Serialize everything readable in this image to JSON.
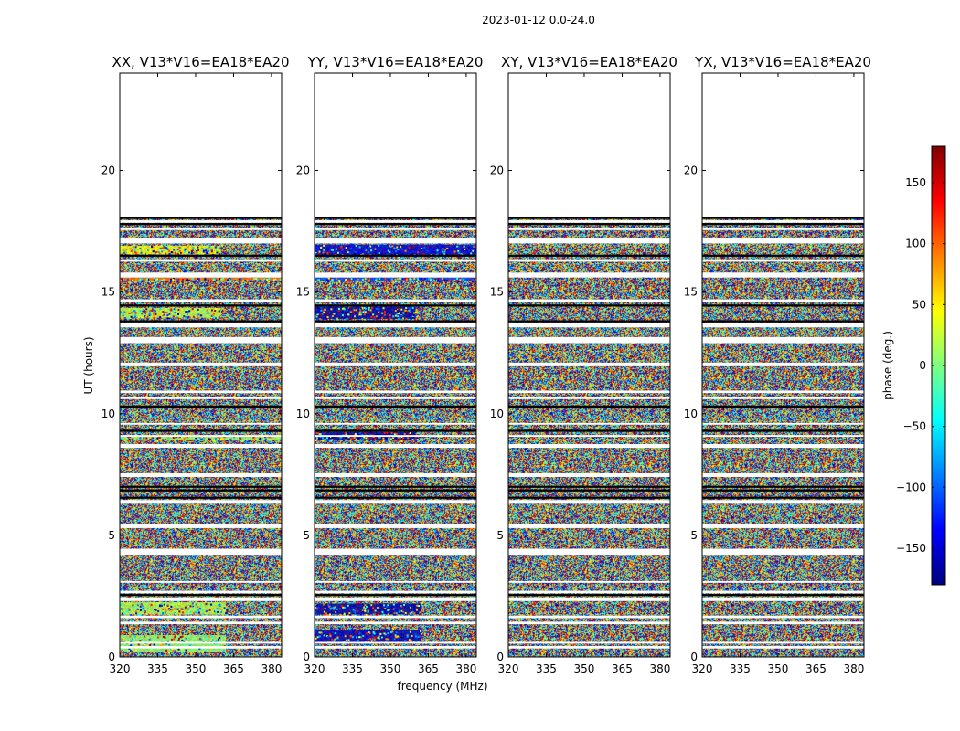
{
  "chart_data": {
    "type": "heatmap",
    "suptitle": "2023-01-12 0.0-24.0",
    "xlabel": "frequency (MHz)",
    "ylabel": "UT (hours)",
    "xlim": [
      320,
      384
    ],
    "ylim": [
      0,
      24
    ],
    "xticks": [
      320,
      335,
      350,
      365,
      380
    ],
    "yticks": [
      0,
      5,
      10,
      15,
      20
    ],
    "colorbar": {
      "label": "phase (deg.)",
      "range": [
        -180,
        180
      ],
      "ticks": [
        150,
        100,
        50,
        0,
        -50,
        -100,
        -150
      ],
      "tick_labels": [
        "150",
        "100",
        "50",
        "0",
        "−50",
        "−100",
        "−150"
      ],
      "colormap": "jet"
    },
    "data_span_hours": [
      0.0,
      18.1
    ],
    "gap_bands_hours": [
      [
        0.35,
        0.45
      ],
      [
        0.55,
        0.62
      ],
      [
        1.35,
        1.45
      ],
      [
        1.6,
        1.7
      ],
      [
        2.3,
        2.45
      ],
      [
        2.62,
        2.72
      ],
      [
        3.05,
        3.12
      ],
      [
        4.2,
        4.45
      ],
      [
        5.3,
        5.45
      ],
      [
        6.3,
        6.45
      ],
      [
        7.4,
        7.55
      ],
      [
        8.6,
        8.75
      ],
      [
        9.05,
        9.12
      ],
      [
        9.55,
        9.62
      ],
      [
        10.6,
        10.7
      ],
      [
        10.85,
        10.95
      ],
      [
        11.95,
        12.1
      ],
      [
        12.9,
        13.15
      ],
      [
        13.55,
        13.72
      ],
      [
        14.6,
        14.7
      ],
      [
        15.6,
        15.8
      ],
      [
        16.25,
        16.35
      ],
      [
        17.0,
        17.2
      ],
      [
        17.55,
        17.65
      ],
      [
        17.85,
        17.95
      ]
    ],
    "flag_lines_hours": [
      2.55,
      6.55,
      6.85,
      7.0,
      9.3,
      10.3,
      13.8,
      14.45,
      16.5,
      17.8,
      18.05
    ],
    "panels": [
      {
        "title": "XX, V13*V16=EA18*EA20",
        "dominant_phase_bands": [
          {
            "t0": 0.2,
            "t1": 0.9,
            "f0": 320,
            "f1": 362,
            "phase": 5
          },
          {
            "t0": 1.75,
            "t1": 2.25,
            "f0": 320,
            "f1": 362,
            "phase": 20
          },
          {
            "t0": 8.9,
            "t1": 9.1,
            "f0": 320,
            "f1": 384,
            "phase": 10
          },
          {
            "t0": 13.95,
            "t1": 14.35,
            "f0": 320,
            "f1": 360,
            "phase": 25
          },
          {
            "t0": 15.45,
            "t1": 15.6,
            "f0": 320,
            "f1": 384,
            "phase": 95
          },
          {
            "t0": 16.55,
            "t1": 16.9,
            "f0": 320,
            "f1": 360,
            "phase": 40
          }
        ]
      },
      {
        "title": "YY, V13*V16=EA18*EA20",
        "dominant_phase_bands": [
          {
            "t0": 0.6,
            "t1": 1.1,
            "f0": 320,
            "f1": 362,
            "phase": -160
          },
          {
            "t0": 1.75,
            "t1": 2.2,
            "f0": 320,
            "f1": 362,
            "phase": -165
          },
          {
            "t0": 8.9,
            "t1": 9.25,
            "f0": 320,
            "f1": 360,
            "phase": -170
          },
          {
            "t0": 13.9,
            "t1": 14.4,
            "f0": 320,
            "f1": 360,
            "phase": -165
          },
          {
            "t0": 15.45,
            "t1": 15.6,
            "f0": 320,
            "f1": 384,
            "phase": -110
          },
          {
            "t0": 16.5,
            "t1": 16.95,
            "f0": 320,
            "f1": 384,
            "phase": -150
          }
        ]
      },
      {
        "title": "XY, V13*V16=EA18*EA20",
        "dominant_phase_bands": []
      },
      {
        "title": "YX, V13*V16=EA18*EA20",
        "dominant_phase_bands": []
      }
    ]
  }
}
